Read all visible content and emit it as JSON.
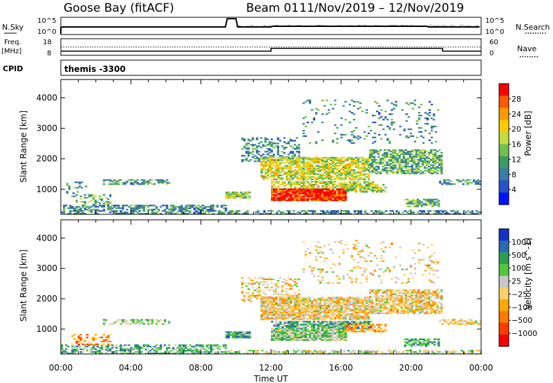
{
  "header": {
    "station": "Goose Bay (fitACF)",
    "beam": "Beam 01",
    "dates": "11/Nov/2019 – 12/Nov/2019"
  },
  "strip": {
    "nsky_label": "N.Sky",
    "nsky_top": "10^5",
    "nsky_bottom": "10^0",
    "nsearch_label": "N.Search",
    "nsearch_top": "10^5",
    "nsearch_bottom": "10^0",
    "freq_label": "Freq.",
    "freq_unit": "[MHz]",
    "freq_top": "18",
    "freq_bottom": "8",
    "nave_label": "Nave",
    "nave_top": "60",
    "nave_bottom": "0",
    "cpid_label": "CPID",
    "cpid_value": "themis -3300"
  },
  "colors": {
    "frame": "#000000",
    "background": "#ffffff"
  },
  "chart_data": [
    {
      "type": "heatmap",
      "panel": "power",
      "ylabel": "Slant Range [km]",
      "xlabel": "",
      "xlim": [
        "00:00",
        "00:00"
      ],
      "ylim": [
        180,
        4600
      ],
      "y_ticks": [
        1000,
        2000,
        3000,
        4000
      ],
      "colorbar_label": "Power [dB]",
      "colorbar_ticks": [
        "28",
        "24",
        "20",
        "16",
        "12",
        "8",
        "4"
      ],
      "colorbar_colors": [
        "#ff0000",
        "#ff5a00",
        "#ff9a00",
        "#ffcc00",
        "#c8dc40",
        "#70c050",
        "#3c9a64",
        "#3c7ca8",
        "#2850c8",
        "#0014ff"
      ],
      "regions": [
        {
          "t0": 0.0,
          "t1": 9.4,
          "r0": 180,
          "r1": 480,
          "level": 0.3,
          "density": 0.55
        },
        {
          "t0": 0.6,
          "t1": 2.8,
          "r0": 480,
          "r1": 820,
          "level": 0.4,
          "density": 0.35
        },
        {
          "t0": 2.4,
          "t1": 6.2,
          "r0": 1150,
          "r1": 1300,
          "level": 0.35,
          "density": 0.55
        },
        {
          "t0": 0.3,
          "t1": 1.4,
          "r0": 850,
          "r1": 1250,
          "level": 0.3,
          "density": 0.3
        },
        {
          "t0": 9.4,
          "t1": 10.8,
          "r0": 700,
          "r1": 900,
          "level": 0.5,
          "density": 0.8
        },
        {
          "t0": 10.3,
          "t1": 13.6,
          "r0": 1900,
          "r1": 2700,
          "level": 0.3,
          "density": 0.35
        },
        {
          "t0": 11.4,
          "t1": 17.6,
          "r0": 1300,
          "r1": 2050,
          "level": 0.55,
          "density": 0.75
        },
        {
          "t0": 17.6,
          "t1": 21.8,
          "r0": 1500,
          "r1": 2300,
          "level": 0.4,
          "density": 0.65
        },
        {
          "t0": 12.0,
          "t1": 17.8,
          "r0": 1000,
          "r1": 1250,
          "level": 0.55,
          "density": 0.7
        },
        {
          "t0": 12.0,
          "t1": 16.2,
          "r0": 620,
          "r1": 1000,
          "level": 0.92,
          "density": 0.95
        },
        {
          "t0": 16.2,
          "t1": 18.6,
          "r0": 900,
          "r1": 1150,
          "level": 0.5,
          "density": 0.65
        },
        {
          "t0": 19.6,
          "t1": 21.6,
          "r0": 420,
          "r1": 650,
          "level": 0.4,
          "density": 0.6
        },
        {
          "t0": 9.4,
          "t1": 24.0,
          "r0": 180,
          "r1": 300,
          "level": 0.3,
          "density": 0.5
        },
        {
          "t0": 21.6,
          "t1": 24.0,
          "r0": 1150,
          "r1": 1300,
          "level": 0.3,
          "density": 0.45
        },
        {
          "t0": 13.8,
          "t1": 21.6,
          "r0": 2500,
          "r1": 3900,
          "level": 0.3,
          "density": 0.1
        }
      ]
    },
    {
      "type": "heatmap",
      "panel": "velocity",
      "ylabel": "Slant Range [km]",
      "xlabel": "Time UT",
      "xlim": [
        "00:00",
        "00:00"
      ],
      "ylim": [
        180,
        4600
      ],
      "x_ticks": [
        "00:00",
        "04:00",
        "08:00",
        "12:00",
        "16:00",
        "20:00",
        "00:00"
      ],
      "y_ticks": [
        1000,
        2000,
        3000,
        4000
      ],
      "colorbar_label": "Velocity [m s^-1]",
      "colorbar_ticks": [
        "1000",
        "500",
        "100",
        "25",
        "−25",
        "−100",
        "−500",
        "−1000"
      ],
      "colorbar_colors": [
        "#1432c8",
        "#286ab4",
        "#28a050",
        "#50c83c",
        "#c8c8c8",
        "#ffd064",
        "#ffaa00",
        "#ff7800",
        "#ff3c00",
        "#ff0000"
      ],
      "regions": [
        {
          "t0": 0.0,
          "t1": 9.4,
          "r0": 180,
          "r1": 480,
          "level": 0.7,
          "density": 0.5
        },
        {
          "t0": 0.6,
          "t1": 2.8,
          "r0": 480,
          "r1": 820,
          "level": 0.3,
          "density": 0.35
        },
        {
          "t0": 2.4,
          "t1": 6.2,
          "r0": 1150,
          "r1": 1300,
          "level": 0.6,
          "density": 0.5
        },
        {
          "t0": 9.4,
          "t1": 10.8,
          "r0": 700,
          "r1": 900,
          "level": 0.75,
          "density": 0.8
        },
        {
          "t0": 10.3,
          "t1": 13.6,
          "r0": 1900,
          "r1": 2700,
          "level": 0.45,
          "density": 0.3
        },
        {
          "t0": 11.4,
          "t1": 17.6,
          "r0": 1300,
          "r1": 2050,
          "level": 0.45,
          "density": 0.8
        },
        {
          "t0": 17.6,
          "t1": 21.8,
          "r0": 1500,
          "r1": 2300,
          "level": 0.45,
          "density": 0.7
        },
        {
          "t0": 12.0,
          "t1": 17.8,
          "r0": 1000,
          "r1": 1250,
          "level": 0.7,
          "density": 0.7
        },
        {
          "t0": 12.0,
          "t1": 16.2,
          "r0": 620,
          "r1": 1000,
          "level": 0.62,
          "density": 0.9
        },
        {
          "t0": 16.2,
          "t1": 18.6,
          "r0": 900,
          "r1": 1150,
          "level": 0.35,
          "density": 0.6
        },
        {
          "t0": 19.6,
          "t1": 21.6,
          "r0": 420,
          "r1": 650,
          "level": 0.7,
          "density": 0.6
        },
        {
          "t0": 9.4,
          "t1": 24.0,
          "r0": 180,
          "r1": 300,
          "level": 0.55,
          "density": 0.5
        },
        {
          "t0": 21.6,
          "t1": 24.0,
          "r0": 1150,
          "r1": 1300,
          "level": 0.45,
          "density": 0.45
        },
        {
          "t0": 13.8,
          "t1": 21.6,
          "r0": 2500,
          "r1": 3900,
          "level": 0.45,
          "density": 0.1
        }
      ]
    }
  ]
}
